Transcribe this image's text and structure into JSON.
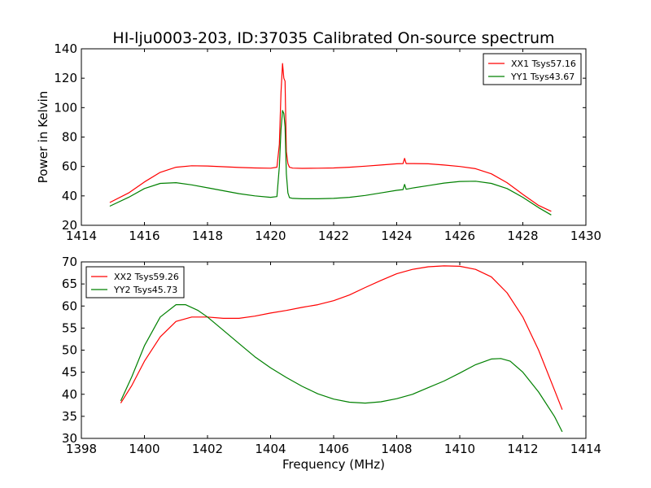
{
  "figure_title": "HI-lju0003-203, ID:37035 Calibrated On-source spectrum",
  "chart_data": [
    {
      "type": "line",
      "title": "HI-lju0003-203, ID:37035 Calibrated On-source spectrum",
      "xlabel": "",
      "ylabel": "Power in Kelvin",
      "xlim": [
        1414,
        1430
      ],
      "ylim": [
        20,
        140
      ],
      "xticks": [
        1414,
        1416,
        1418,
        1420,
        1422,
        1424,
        1426,
        1428,
        1430
      ],
      "yticks": [
        20,
        40,
        60,
        80,
        100,
        120,
        140
      ],
      "grid": false,
      "legend_position": "top-right",
      "series": [
        {
          "name": "XX1 Tsys57.16",
          "color": "#ff0000",
          "x": [
            1414.9,
            1415.5,
            1416.0,
            1416.5,
            1417.0,
            1417.5,
            1418.0,
            1418.5,
            1419.0,
            1419.5,
            1420.0,
            1420.2,
            1420.28,
            1420.33,
            1420.38,
            1420.42,
            1420.46,
            1420.5,
            1420.55,
            1420.6,
            1420.7,
            1421.0,
            1421.5,
            1422.0,
            1422.5,
            1423.0,
            1423.5,
            1424.0,
            1424.2,
            1424.25,
            1424.3,
            1424.5,
            1425.0,
            1425.5,
            1426.0,
            1426.5,
            1427.0,
            1427.5,
            1428.0,
            1428.5,
            1428.9
          ],
          "y": [
            35.5,
            42.0,
            49.5,
            56.0,
            59.5,
            60.5,
            60.3,
            59.8,
            59.3,
            59.0,
            58.8,
            59.5,
            75.0,
            110.0,
            130.0,
            120.0,
            118.0,
            70.0,
            62.0,
            59.5,
            58.9,
            58.7,
            58.8,
            59.0,
            59.5,
            60.2,
            61.0,
            61.8,
            62.0,
            65.5,
            62.0,
            62.0,
            61.8,
            61.0,
            60.0,
            58.5,
            55.0,
            49.0,
            41.0,
            33.5,
            29.5
          ]
        },
        {
          "name": "YY1 Tsys43.67",
          "color": "#008000",
          "x": [
            1414.9,
            1415.5,
            1416.0,
            1416.5,
            1417.0,
            1417.5,
            1418.0,
            1418.5,
            1419.0,
            1419.5,
            1420.0,
            1420.2,
            1420.28,
            1420.33,
            1420.38,
            1420.42,
            1420.46,
            1420.5,
            1420.55,
            1420.6,
            1420.7,
            1421.0,
            1421.5,
            1422.0,
            1422.5,
            1423.0,
            1423.5,
            1424.0,
            1424.2,
            1424.25,
            1424.3,
            1424.5,
            1425.0,
            1425.5,
            1426.0,
            1426.5,
            1427.0,
            1427.5,
            1428.0,
            1428.5,
            1428.9
          ],
          "y": [
            33.0,
            39.0,
            45.0,
            48.5,
            49.0,
            47.5,
            45.5,
            43.5,
            41.5,
            40.0,
            39.0,
            39.5,
            60.0,
            85.0,
            98.0,
            96.0,
            87.0,
            55.0,
            42.0,
            38.8,
            38.3,
            38.0,
            38.0,
            38.3,
            39.0,
            40.3,
            42.0,
            43.8,
            44.3,
            47.8,
            44.5,
            45.3,
            47.0,
            48.7,
            49.8,
            50.0,
            48.5,
            45.0,
            39.0,
            32.0,
            27.0
          ]
        }
      ]
    },
    {
      "type": "line",
      "title": "",
      "xlabel": "Frequency (MHz)",
      "ylabel": "",
      "xlim": [
        1398,
        1414
      ],
      "ylim": [
        30,
        70
      ],
      "xticks": [
        1398,
        1400,
        1402,
        1404,
        1406,
        1408,
        1410,
        1412,
        1414
      ],
      "yticks": [
        30,
        35,
        40,
        45,
        50,
        55,
        60,
        65,
        70
      ],
      "grid": false,
      "legend_position": "top-left",
      "series": [
        {
          "name": "XX2 Tsys59.26",
          "color": "#ff0000",
          "x": [
            1399.25,
            1399.6,
            1400.0,
            1400.5,
            1401.0,
            1401.5,
            1402.0,
            1402.5,
            1403.0,
            1403.5,
            1404.0,
            1404.5,
            1405.0,
            1405.5,
            1406.0,
            1406.5,
            1407.0,
            1407.5,
            1408.0,
            1408.5,
            1409.0,
            1409.5,
            1410.0,
            1410.5,
            1411.0,
            1411.5,
            1412.0,
            1412.5,
            1413.0,
            1413.25
          ],
          "y": [
            38.0,
            42.0,
            47.5,
            53.0,
            56.5,
            57.5,
            57.5,
            57.2,
            57.2,
            57.7,
            58.4,
            59.0,
            59.7,
            60.3,
            61.2,
            62.5,
            64.2,
            65.8,
            67.3,
            68.3,
            68.9,
            69.1,
            69.0,
            68.3,
            66.6,
            63.0,
            57.5,
            50.0,
            41.0,
            36.5
          ]
        },
        {
          "name": "YY2 Tsys45.73",
          "color": "#008000",
          "x": [
            1399.25,
            1399.6,
            1400.0,
            1400.5,
            1401.0,
            1401.3,
            1401.7,
            1402.0,
            1402.5,
            1403.0,
            1403.5,
            1404.0,
            1404.5,
            1405.0,
            1405.5,
            1406.0,
            1406.5,
            1407.0,
            1407.5,
            1408.0,
            1408.5,
            1409.0,
            1409.5,
            1410.0,
            1410.5,
            1411.0,
            1411.3,
            1411.6,
            1412.0,
            1412.5,
            1413.0,
            1413.25
          ],
          "y": [
            38.5,
            44.0,
            51.0,
            57.5,
            60.3,
            60.3,
            59.0,
            57.5,
            54.5,
            51.5,
            48.5,
            46.0,
            43.8,
            41.8,
            40.1,
            38.9,
            38.2,
            38.0,
            38.3,
            39.0,
            40.0,
            41.5,
            43.0,
            44.8,
            46.7,
            48.0,
            48.1,
            47.5,
            45.0,
            40.5,
            35.0,
            31.5
          ]
        }
      ]
    }
  ]
}
